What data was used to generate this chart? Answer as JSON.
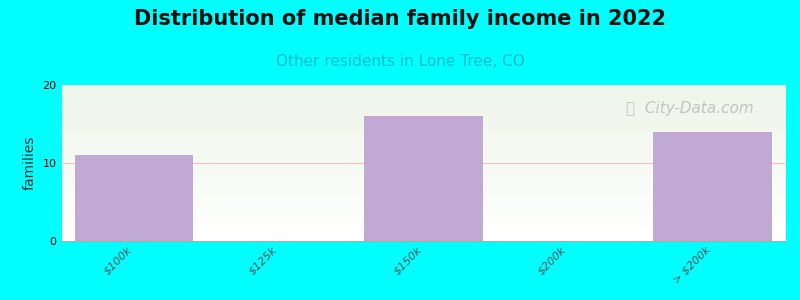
{
  "title": "Distribution of median family income in 2022",
  "subtitle": "Other residents in Lone Tree, CO",
  "ylabel": "families",
  "background_color": "#00FFFF",
  "plot_bg_top": "#eef5e8",
  "plot_bg_bottom": "#ffffff",
  "bar_color": "#c0aad4",
  "categories": [
    "$100k",
    "$125k",
    "$150k",
    "$200k",
    "> $200k"
  ],
  "values": [
    11,
    0,
    16,
    0,
    14
  ],
  "ylim": [
    0,
    20
  ],
  "yticks": [
    0,
    10,
    20
  ],
  "title_fontsize": 15,
  "subtitle_fontsize": 11,
  "subtitle_color": "#00BBCC",
  "ylabel_fontsize": 10,
  "tick_label_fontsize": 8,
  "watermark": "ⓘ  City-Data.com",
  "watermark_color": "#bbbbbb",
  "watermark_fontsize": 11,
  "hline_color": "#ffbbbb",
  "hline_y": 10
}
